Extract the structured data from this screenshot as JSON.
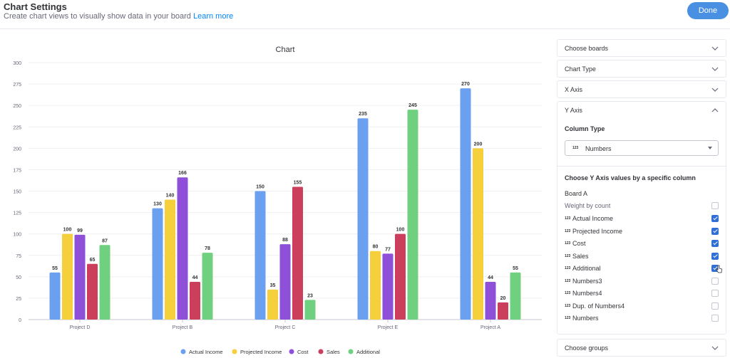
{
  "header": {
    "title": "Chart Settings",
    "subtitle": "Create chart views to visually show data in your board",
    "learn_more": "Learn more",
    "done_label": "Done"
  },
  "colors": {
    "actual_income": "#6b9ff0",
    "projected_income": "#f5cf3c",
    "cost": "#8e4fd9",
    "sales": "#cc3f5c",
    "additional": "#6fd07f",
    "accent": "#4a90e2"
  },
  "chart_data": {
    "type": "bar",
    "title": "Chart",
    "categories": [
      "Project D",
      "Project B",
      "Project C",
      "Project E",
      "Project A"
    ],
    "ylim": [
      0,
      300
    ],
    "yticks": [
      0,
      25,
      50,
      75,
      100,
      125,
      150,
      175,
      200,
      225,
      250,
      275,
      300
    ],
    "grid": true,
    "legend_position": "bottom",
    "series": [
      {
        "name": "Actual Income",
        "color": "#6b9ff0",
        "values": [
          55,
          130,
          150,
          235,
          270
        ]
      },
      {
        "name": "Projected Income",
        "color": "#f5cf3c",
        "values": [
          100,
          140,
          35,
          80,
          200
        ]
      },
      {
        "name": "Cost",
        "color": "#8e4fd9",
        "values": [
          99,
          166,
          88,
          77,
          44
        ]
      },
      {
        "name": "Sales",
        "color": "#cc3f5c",
        "values": [
          65,
          44,
          155,
          100,
          20
        ]
      },
      {
        "name": "Additional",
        "color": "#6fd07f",
        "values": [
          87,
          78,
          23,
          245,
          55
        ]
      }
    ]
  },
  "panel": {
    "choose_boards": "Choose boards",
    "chart_type": "Chart Type",
    "x_axis": "X Axis",
    "y_axis": "Y Axis",
    "column_type_label": "Column Type",
    "column_type_icon": "123",
    "column_type_value": "Numbers",
    "choose_values_label": "Choose Y Axis values by a specific column",
    "board_label": "Board A",
    "weight_label": "Weight by count",
    "column_icon": "123",
    "columns": [
      {
        "label": "Actual Income",
        "checked": true
      },
      {
        "label": "Projected Income",
        "checked": true
      },
      {
        "label": "Cost",
        "checked": true
      },
      {
        "label": "Sales",
        "checked": true
      },
      {
        "label": "Additional",
        "checked": true
      },
      {
        "label": "Numbers3",
        "checked": false
      },
      {
        "label": "Numbers4",
        "checked": false
      },
      {
        "label": "Dup. of Numbers4",
        "checked": false
      },
      {
        "label": "Numbers",
        "checked": false
      }
    ],
    "choose_groups": "Choose groups"
  }
}
